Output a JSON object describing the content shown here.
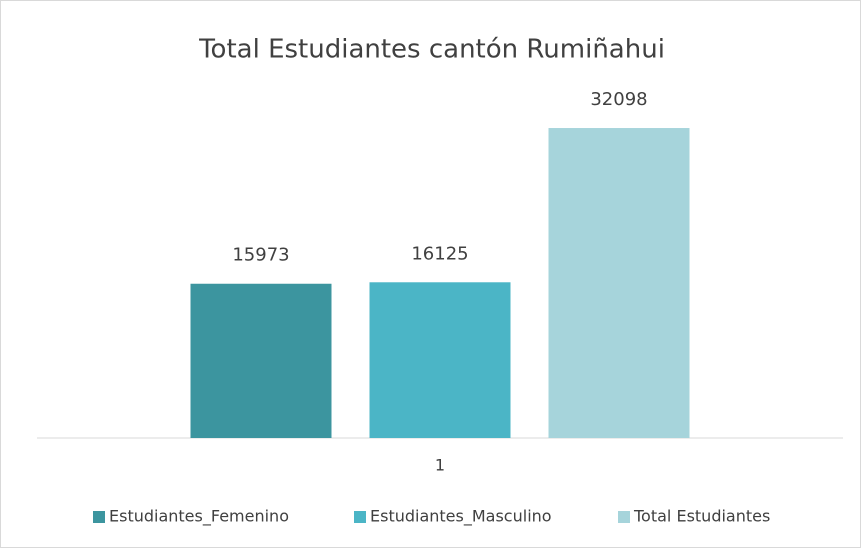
{
  "chart_data": {
    "type": "bar",
    "title": "Total Estudiantes cantón Rumiñahui",
    "categories": [
      "1"
    ],
    "series": [
      {
        "name": "Estudiantes_Femenino",
        "color": "#3c959f",
        "values": [
          15973
        ]
      },
      {
        "name": "Estudiantes_Masculino",
        "color": "#4bb5c6",
        "values": [
          16125
        ]
      },
      {
        "name": "Total Estudiantes",
        "color": "#a6d4db",
        "values": [
          32098
        ]
      }
    ],
    "ylim": [
      0,
      35000
    ],
    "legend": "bottom"
  }
}
